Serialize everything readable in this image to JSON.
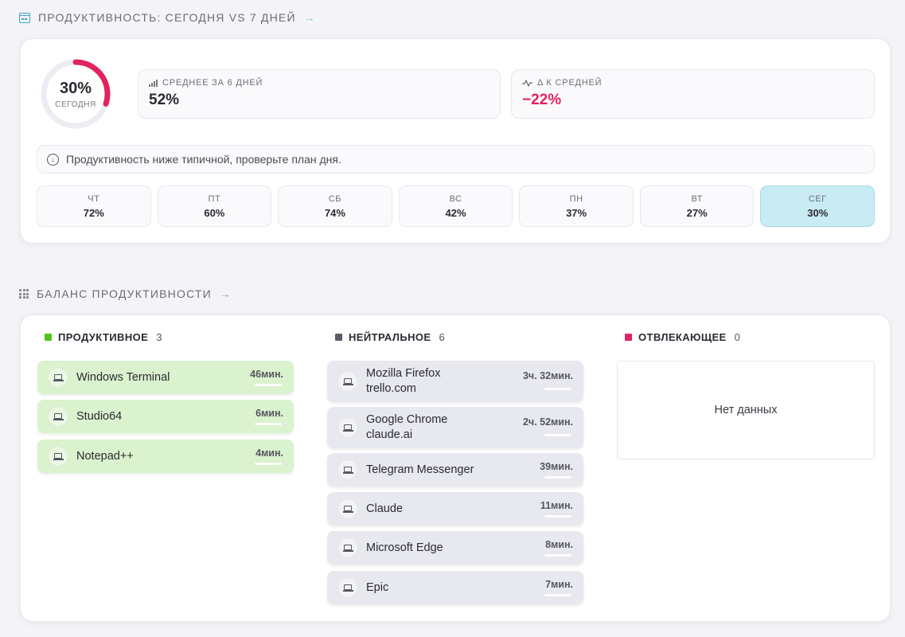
{
  "section1": {
    "title": "ПРОДУКТИВНОСТЬ: СЕГОДНЯ VS 7 ДНЕЙ",
    "arrow": "→"
  },
  "today": {
    "percent_text": "30%",
    "percent": 30,
    "label": "СЕГОДНЯ"
  },
  "avg": {
    "label": "СРЕДНЕЕ ЗА 6 ДНЕЙ",
    "value": "52%"
  },
  "delta": {
    "label": "Δ К СРЕДНЕЙ",
    "value": "−22%"
  },
  "notice": "Продуктивность ниже типичной, проверьте план дня.",
  "days": [
    {
      "day": "ЧТ",
      "pct": "72%"
    },
    {
      "day": "ПТ",
      "pct": "60%"
    },
    {
      "day": "СБ",
      "pct": "74%"
    },
    {
      "day": "ВС",
      "pct": "42%"
    },
    {
      "day": "ПН",
      "pct": "37%"
    },
    {
      "day": "ВТ",
      "pct": "27%"
    },
    {
      "day": "СЕГ",
      "pct": "30%"
    }
  ],
  "section2": {
    "title": "БАЛАНС ПРОДУКТИВНОСТИ",
    "arrow": "→"
  },
  "productive": {
    "name": "ПРОДУКТИВНОЕ",
    "count": "3",
    "color": "#52c41a",
    "items": [
      {
        "name": "Windows Terminal",
        "time": "46мин.",
        "ratio": 0.95
      },
      {
        "name": "Studio64",
        "time": "6мин.",
        "ratio": 1.0
      },
      {
        "name": "Notepad++",
        "time": "4мин.",
        "ratio": 0.85
      }
    ]
  },
  "neutral": {
    "name": "НЕЙТРАЛЬНОЕ",
    "count": "6",
    "color": "#5c5c68",
    "items": [
      {
        "name": "Mozilla Firefox",
        "sub": "trello.com",
        "time": "3ч. 32мин.",
        "ratio": 1.0
      },
      {
        "name": "Google Chrome",
        "sub": "claude.ai",
        "time": "2ч. 52мин.",
        "ratio": 1.0
      },
      {
        "name": "Telegram Messenger",
        "time": "39мин.",
        "ratio": 0.3
      },
      {
        "name": "Claude",
        "time": "11мин.",
        "ratio": 0.88
      },
      {
        "name": "Microsoft Edge",
        "time": "8мин.",
        "ratio": 0.5
      },
      {
        "name": "Epic",
        "time": "7мин.",
        "ratio": 0.88
      }
    ]
  },
  "distracting": {
    "name": "ОТВЛЕКАЮЩЕЕ",
    "count": "0",
    "color": "#e0245e",
    "empty": "Нет данных"
  },
  "colors": {
    "accent": "#3ea6c8",
    "today_ring": "#e0245e",
    "ring_track": "#ececf3",
    "active_day": "#c9ebf4"
  },
  "icons": {
    "section1": "calendar-icon",
    "section2": "grid-icon",
    "avg": "bar-chart-icon",
    "delta": "pulse-icon",
    "notice": "arrow-down-circle-icon",
    "app": "laptop-icon"
  }
}
